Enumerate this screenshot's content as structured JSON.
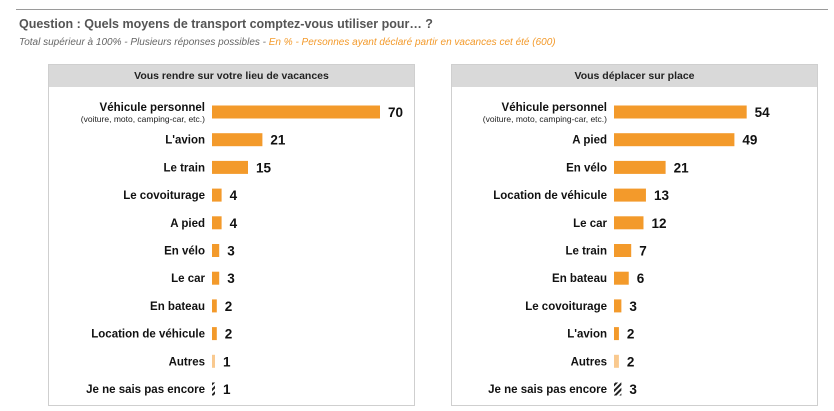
{
  "header": {
    "question": "Question : Quels moyens de transport comptez-vous utiliser pour… ?",
    "subtitle_plain": "Total supérieur à 100% - Plusieurs réponses possibles - ",
    "subtitle_highlight": "En % - Personnes ayant déclaré partir en vacances cet été (600)"
  },
  "colors": {
    "bar": "#f39a2b",
    "bar_light": "#f9c98f",
    "bar_hatch": "#222222",
    "panel_header": "#d9d9d9"
  },
  "chart_data": [
    {
      "type": "bar",
      "orientation": "horizontal",
      "title": "Vous rendre sur votre lieu de vacances",
      "categories": [
        "Véhicule personnel",
        "L'avion",
        "Le train",
        "Le covoiturage",
        "A pied",
        "En vélo",
        "Le car",
        "En bateau",
        "Location de véhicule",
        "Autres",
        "Je ne sais pas encore"
      ],
      "category_notes": [
        "(voiture, moto, camping-car, etc.)",
        "",
        "",
        "",
        "",
        "",
        "",
        "",
        "",
        "",
        ""
      ],
      "values": [
        70,
        21,
        15,
        4,
        4,
        3,
        3,
        2,
        2,
        1,
        1
      ],
      "bar_styles": [
        "solid",
        "solid",
        "solid",
        "solid",
        "solid",
        "solid",
        "solid",
        "solid",
        "solid",
        "light",
        "hatched"
      ],
      "value_max": 70
    },
    {
      "type": "bar",
      "orientation": "horizontal",
      "title": "Vous déplacer sur place",
      "categories": [
        "Véhicule personnel",
        "A pied",
        "En vélo",
        "Location de véhicule",
        "Le car",
        "Le train",
        "En bateau",
        "Le covoiturage",
        "L'avion",
        "Autres",
        "Je ne sais pas encore"
      ],
      "category_notes": [
        "(voiture, moto, camping-car, etc.)",
        "",
        "",
        "",
        "",
        "",
        "",
        "",
        "",
        "",
        ""
      ],
      "values": [
        54,
        49,
        21,
        13,
        12,
        7,
        6,
        3,
        2,
        2,
        3
      ],
      "bar_styles": [
        "solid",
        "solid",
        "solid",
        "solid",
        "solid",
        "solid",
        "solid",
        "solid",
        "solid",
        "light",
        "hatched"
      ],
      "value_max": 70
    }
  ]
}
